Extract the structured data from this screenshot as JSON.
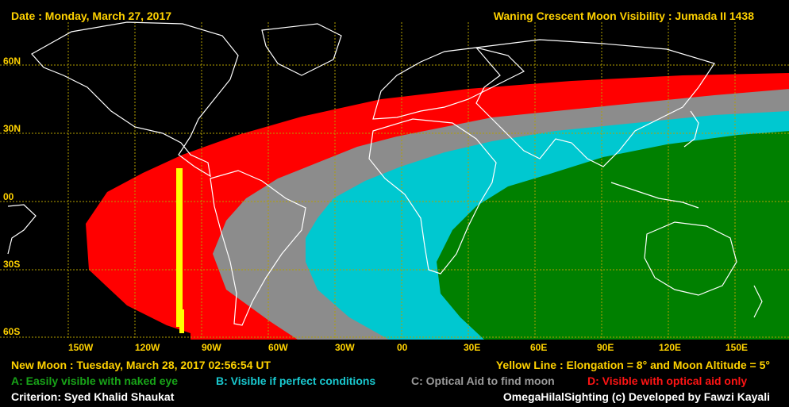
{
  "header": {
    "date": "Date : Monday, March 27, 2017",
    "title": "Waning Crescent Moon Visibility : Jumada II 1438"
  },
  "footer": {
    "new_moon": "New Moon : Tuesday, March 28, 2017  02:56:54  UT",
    "yellow_line": "Yellow Line : Elongation = 8° and Moon Altitude = 5°",
    "criterion": "Criterion: Syed Khalid Shaukat",
    "credit": "OmegaHilalSighting  (c)  Developed by Fawzi Kayali"
  },
  "legend": [
    {
      "text": "A: Easily visible with naked eye",
      "color": "#18a418"
    },
    {
      "text": "B: Visible if perfect conditions",
      "color": "#19c8cf"
    },
    {
      "text": "C: Optical Aid to find moon",
      "color": "#9a9a9a"
    },
    {
      "text": "D: Visible with optical aid only",
      "color": "#ff1414"
    }
  ],
  "axes": {
    "lat_labels": [
      "60N",
      "30N",
      "00",
      "30S",
      "60S"
    ],
    "lon_labels": [
      "150W",
      "120W",
      "90W",
      "60W",
      "30W",
      "00",
      "30E",
      "60E",
      "90E",
      "120E",
      "150E"
    ]
  },
  "colors": {
    "A": "#008000",
    "B": "#00c8d0",
    "C": "#8c8c8c",
    "D": "#ff0000",
    "yellow": "#ffff00",
    "grid": "#b4a000",
    "text": "#ffd200"
  }
}
